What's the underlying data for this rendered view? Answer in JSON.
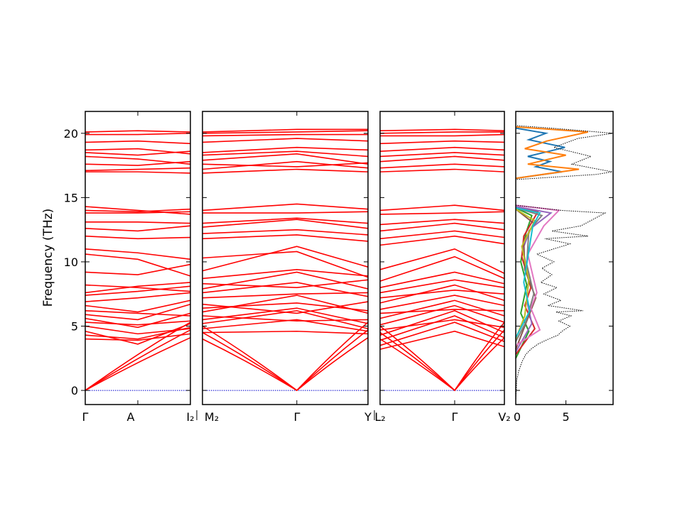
{
  "chart_data": {
    "type": "line",
    "ylabel": "Frequency (THz)",
    "ylim": [
      -1.1,
      21.7
    ],
    "yticks": [
      0,
      5,
      10,
      15,
      20
    ],
    "band_color": "#ff0000",
    "zero_line_color": "#0000cc",
    "segments": [
      {
        "name": "",
        "ticks": [
          {
            "t": 0.0,
            "label": "Γ"
          },
          {
            "t": 0.5,
            "label": "A"
          }
        ],
        "acoustic_touch": [
          0.0
        ],
        "optical": [
          [
            4.0,
            3.9,
            4.4
          ],
          [
            4.3,
            4.0,
            4.9
          ],
          [
            4.6,
            3.6,
            5.2
          ],
          [
            5.0,
            4.4,
            4.8
          ],
          [
            5.3,
            5.1,
            5.4
          ],
          [
            5.6,
            4.9,
            6.0
          ],
          [
            5.9,
            5.5,
            6.7
          ],
          [
            6.2,
            6.0,
            5.8
          ],
          [
            6.6,
            6.1,
            7.0
          ],
          [
            6.9,
            7.2,
            7.6
          ],
          [
            7.4,
            7.7,
            8.1
          ],
          [
            7.6,
            8.1,
            8.4
          ],
          [
            8.2,
            8.0,
            7.7
          ],
          [
            9.2,
            9.0,
            9.8
          ],
          [
            10.6,
            10.2,
            8.9
          ],
          [
            11.0,
            10.7,
            10.2
          ],
          [
            12.0,
            11.8,
            11.9
          ],
          [
            12.6,
            12.4,
            12.8
          ],
          [
            13.1,
            13.1,
            13.0
          ],
          [
            13.8,
            13.8,
            13.9
          ],
          [
            14.0,
            13.9,
            14.1
          ],
          [
            14.3,
            14.0,
            13.7
          ],
          [
            17.0,
            17.0,
            16.9
          ],
          [
            17.1,
            17.2,
            17.3
          ],
          [
            17.6,
            17.5,
            17.8
          ],
          [
            18.2,
            18.0,
            17.6
          ],
          [
            18.5,
            18.3,
            18.6
          ],
          [
            18.7,
            18.8,
            18.4
          ],
          [
            19.3,
            19.4,
            19.2
          ],
          [
            19.9,
            19.9,
            20.0
          ],
          [
            20.1,
            20.2,
            20.1
          ]
        ]
      },
      {
        "name": "",
        "ticks": [
          {
            "t": 0.0,
            "label": "I₂"
          },
          {
            "t": 0.0,
            "label": "M₂"
          },
          {
            "t": 0.57,
            "label": "Γ"
          }
        ],
        "acoustic_touch": [
          0.57
        ],
        "optical": [
          [
            4.5,
            4.6,
            4.4
          ],
          [
            4.8,
            5.5,
            4.6
          ],
          [
            5.2,
            6.2,
            4.8
          ],
          [
            5.5,
            6.4,
            5.2
          ],
          [
            5.8,
            5.4,
            5.5
          ],
          [
            6.1,
            7.4,
            6.0
          ],
          [
            6.4,
            6.8,
            6.2
          ],
          [
            6.7,
            6.0,
            6.9
          ],
          [
            7.2,
            7.5,
            7.6
          ],
          [
            7.6,
            8.4,
            7.3
          ],
          [
            7.9,
            9.2,
            7.9
          ],
          [
            8.3,
            8.0,
            8.6
          ],
          [
            8.7,
            9.4,
            8.9
          ],
          [
            9.3,
            11.2,
            9.6
          ],
          [
            10.3,
            10.8,
            8.8
          ],
          [
            11.8,
            12.1,
            11.6
          ],
          [
            12.2,
            12.5,
            12.1
          ],
          [
            12.7,
            13.3,
            12.6
          ],
          [
            13.0,
            13.4,
            13.0
          ],
          [
            13.8,
            13.8,
            13.9
          ],
          [
            14.0,
            14.5,
            14.1
          ],
          [
            16.9,
            17.2,
            17.0
          ],
          [
            17.2,
            17.8,
            17.3
          ],
          [
            17.6,
            17.4,
            17.7
          ],
          [
            17.9,
            18.4,
            17.6
          ],
          [
            18.3,
            18.6,
            18.2
          ],
          [
            18.5,
            18.9,
            18.7
          ],
          [
            19.3,
            19.6,
            19.4
          ],
          [
            19.8,
            19.9,
            19.9
          ],
          [
            20.0,
            20.1,
            20.2
          ],
          [
            20.1,
            20.3,
            20.3
          ]
        ]
      },
      {
        "name": "",
        "ticks": [
          {
            "t": 0.0,
            "label": "Y"
          },
          {
            "t": 0.0,
            "label": "L₂"
          },
          {
            "t": 0.6,
            "label": "Γ"
          }
        ],
        "acoustic_touch": [
          0.6
        ],
        "optical": [
          [
            3.2,
            4.6,
            3.4
          ],
          [
            3.5,
            5.3,
            3.8
          ],
          [
            3.9,
            5.8,
            4.1
          ],
          [
            4.3,
            6.2,
            4.5
          ],
          [
            4.7,
            5.5,
            4.9
          ],
          [
            5.1,
            6.6,
            5.3
          ],
          [
            5.6,
            7.0,
            5.8
          ],
          [
            6.0,
            6.3,
            6.2
          ],
          [
            6.3,
            7.4,
            6.6
          ],
          [
            6.8,
            8.2,
            7.0
          ],
          [
            7.2,
            7.8,
            7.5
          ],
          [
            7.6,
            8.6,
            8.0
          ],
          [
            8.0,
            9.2,
            8.3
          ],
          [
            8.5,
            10.4,
            8.7
          ],
          [
            9.4,
            11.0,
            9.1
          ],
          [
            11.3,
            12.0,
            11.4
          ],
          [
            11.8,
            12.4,
            11.9
          ],
          [
            12.4,
            13.0,
            12.5
          ],
          [
            12.9,
            13.3,
            13.0
          ],
          [
            13.7,
            13.8,
            13.9
          ],
          [
            14.0,
            14.4,
            14.0
          ],
          [
            17.0,
            17.2,
            17.0
          ],
          [
            17.3,
            17.6,
            17.4
          ],
          [
            17.8,
            18.2,
            17.9
          ],
          [
            18.2,
            18.5,
            18.3
          ],
          [
            18.6,
            18.9,
            18.7
          ],
          [
            19.2,
            19.4,
            19.3
          ],
          [
            19.8,
            19.8,
            19.9
          ],
          [
            20.0,
            20.1,
            20.1
          ],
          [
            20.2,
            20.3,
            20.2
          ]
        ]
      },
      {
        "name": "",
        "ticks": [
          {
            "t": 1.0,
            "label": "V₂"
          }
        ],
        "acoustic_touch": [],
        "optical": []
      }
    ],
    "dos": {
      "xticks": [
        {
          "value": 0,
          "label": "0"
        },
        {
          "value": 5,
          "label": "5"
        }
      ],
      "xlim": [
        0,
        9.7
      ],
      "total": [
        [
          0,
          -0.8
        ],
        [
          0.1,
          0.8
        ],
        [
          0.3,
          1.5
        ],
        [
          0.6,
          2.2
        ],
        [
          1.0,
          2.8
        ],
        [
          1.5,
          3.2
        ],
        [
          2.2,
          3.6
        ],
        [
          3.0,
          3.9
        ],
        [
          4.2,
          4.3
        ],
        [
          4.6,
          4.6
        ],
        [
          5.4,
          5.0
        ],
        [
          4.3,
          5.4
        ],
        [
          5.5,
          5.8
        ],
        [
          4.0,
          6.1
        ],
        [
          6.7,
          6.2
        ],
        [
          3.2,
          6.6
        ],
        [
          4.5,
          7.0
        ],
        [
          2.8,
          7.5
        ],
        [
          4.1,
          8.0
        ],
        [
          2.5,
          8.4
        ],
        [
          3.6,
          9.0
        ],
        [
          2.6,
          9.5
        ],
        [
          3.8,
          10.0
        ],
        [
          2.1,
          10.6
        ],
        [
          5.4,
          11.4
        ],
        [
          2.9,
          11.8
        ],
        [
          7.2,
          12.0
        ],
        [
          3.6,
          12.4
        ],
        [
          6.5,
          12.8
        ],
        [
          8.9,
          13.8
        ],
        [
          4.6,
          14.0
        ],
        [
          0,
          14.4
        ],
        [
          0,
          16.4
        ],
        [
          8.0,
          16.8
        ],
        [
          9.6,
          17.0
        ],
        [
          5.6,
          17.6
        ],
        [
          7.5,
          18.2
        ],
        [
          3.8,
          18.9
        ],
        [
          6.2,
          19.6
        ],
        [
          9.7,
          20.0
        ],
        [
          3.5,
          20.4
        ],
        [
          0,
          20.6
        ]
      ],
      "partials": [
        {
          "color": "#1f77b4",
          "points": [
            [
              0,
              16.5
            ],
            [
              4.6,
              17.0
            ],
            [
              2.0,
              17.4
            ],
            [
              3.4,
              17.8
            ],
            [
              1.2,
              18.2
            ],
            [
              4.9,
              18.9
            ],
            [
              1.3,
              19.5
            ],
            [
              3.0,
              20.0
            ],
            [
              0,
              20.4
            ]
          ]
        },
        {
          "color": "#ff7f0e",
          "points": [
            [
              0,
              16.5
            ],
            [
              6.3,
              17.2
            ],
            [
              1.2,
              17.6
            ],
            [
              5.0,
              18.3
            ],
            [
              0.9,
              18.8
            ],
            [
              3.1,
              19.4
            ],
            [
              7.2,
              20.1
            ],
            [
              0,
              20.5
            ]
          ]
        },
        {
          "color": "#2ca02c",
          "points": [
            [
              0,
              2.5
            ],
            [
              1.3,
              4.6
            ],
            [
              0.5,
              6.0
            ],
            [
              1.1,
              8.2
            ],
            [
              0.5,
              10.0
            ],
            [
              1.0,
              12.2
            ],
            [
              1.6,
              13.6
            ],
            [
              0,
              14.2
            ]
          ]
        },
        {
          "color": "#d62728",
          "points": [
            [
              0,
              2.8
            ],
            [
              1.9,
              4.8
            ],
            [
              0.9,
              6.6
            ],
            [
              1.5,
              8.0
            ],
            [
              0.6,
              10.4
            ],
            [
              0.8,
              12.0
            ],
            [
              2.2,
              13.9
            ],
            [
              0,
              14.2
            ]
          ]
        },
        {
          "color": "#9467bd",
          "points": [
            [
              0,
              3.0
            ],
            [
              1.6,
              5.2
            ],
            [
              1.1,
              7.0
            ],
            [
              1.3,
              8.8
            ],
            [
              0.7,
              11.0
            ],
            [
              1.5,
              12.6
            ],
            [
              3.5,
              13.8
            ],
            [
              0,
              14.3
            ]
          ]
        },
        {
          "color": "#8c564b",
          "points": [
            [
              0,
              3.2
            ],
            [
              1.2,
              5.6
            ],
            [
              2.0,
              7.2
            ],
            [
              0.9,
              9.4
            ],
            [
              0.8,
              11.6
            ],
            [
              1.8,
              13.0
            ],
            [
              0,
              14.1
            ]
          ]
        },
        {
          "color": "#e377c2",
          "points": [
            [
              0,
              3.5
            ],
            [
              2.4,
              4.7
            ],
            [
              1.5,
              6.4
            ],
            [
              2.1,
              7.6
            ],
            [
              1.2,
              10.6
            ],
            [
              2.8,
              12.8
            ],
            [
              4.3,
              14.0
            ],
            [
              0,
              14.4
            ]
          ]
        },
        {
          "color": "#7f7f7f",
          "points": [
            [
              0,
              3.8
            ],
            [
              1.0,
              5.3
            ],
            [
              1.8,
              7.5
            ],
            [
              1.1,
              9.8
            ],
            [
              1.3,
              12.4
            ],
            [
              2.6,
              13.6
            ],
            [
              0,
              14.2
            ]
          ]
        },
        {
          "color": "#bcbd22",
          "points": [
            [
              0,
              4.0
            ],
            [
              0.9,
              5.8
            ],
            [
              1.3,
              8.6
            ],
            [
              0.6,
              11.2
            ],
            [
              1.9,
              13.2
            ],
            [
              0,
              14.1
            ]
          ]
        },
        {
          "color": "#17becf",
          "points": [
            [
              0,
              4.1
            ],
            [
              1.4,
              6.2
            ],
            [
              0.8,
              8.4
            ],
            [
              1.7,
              12.8
            ],
            [
              2.4,
              13.8
            ],
            [
              0,
              14.2
            ]
          ]
        }
      ]
    }
  }
}
